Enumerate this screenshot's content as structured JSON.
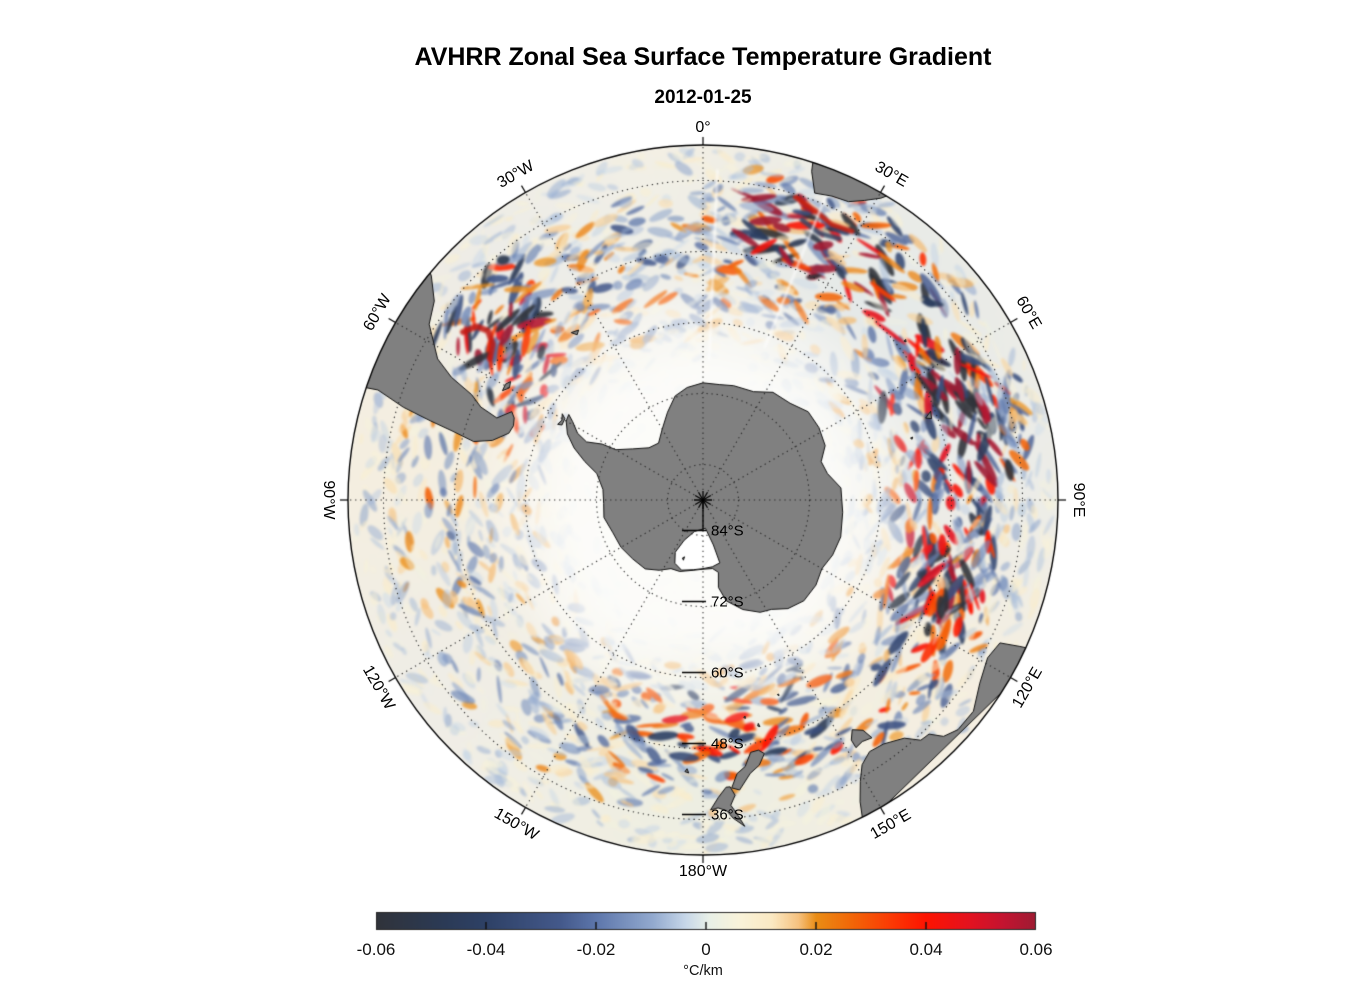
{
  "title": "AVHRR Zonal Sea Surface Temperature Gradient",
  "subtitle": "2012-01-25",
  "chart_data": {
    "type": "heatmap",
    "description_visible": "South polar view of zonal SST gradient field with graticule and colorbar",
    "value_range": [
      -0.06,
      0.06
    ],
    "projection": {
      "pole_lat": -90,
      "outer_lat": -30,
      "lat_gridlines": [
        -84,
        -72,
        -60,
        -48,
        -36
      ],
      "lon_gridline_step_deg": 30
    },
    "lon_labels": [
      {
        "text": "0°",
        "lon": 0,
        "rot": 0
      },
      {
        "text": "30°E",
        "lon": 30,
        "rot": 30
      },
      {
        "text": "60°E",
        "lon": 60,
        "rot": 60
      },
      {
        "text": "90°E",
        "lon": 90,
        "rot": 90
      },
      {
        "text": "120°E",
        "lon": 120,
        "rot": -60
      },
      {
        "text": "150°E",
        "lon": 150,
        "rot": -30
      },
      {
        "text": "180°W",
        "lon": 180,
        "rot": 0
      },
      {
        "text": "150°W",
        "lon": -150,
        "rot": 30
      },
      {
        "text": "120°W",
        "lon": -120,
        "rot": 60
      },
      {
        "text": "90°W",
        "lon": -90,
        "rot": 90
      },
      {
        "text": "60°W",
        "lon": -60,
        "rot": -60
      },
      {
        "text": "30°W",
        "lon": -30,
        "rot": -30
      }
    ],
    "lat_labels": [
      {
        "text": "84°S",
        "lat": -84
      },
      {
        "text": "72°S",
        "lat": -72
      },
      {
        "text": "60°S",
        "lat": -60
      },
      {
        "text": "48°S",
        "lat": -48
      },
      {
        "text": "36°S",
        "lat": -36
      }
    ],
    "colorbar": {
      "min": -0.06,
      "max": 0.06,
      "ticks": [
        "-0.06",
        "-0.04",
        "-0.02",
        "0",
        "0.02",
        "0.04",
        "0.06"
      ],
      "tick_values": [
        -0.06,
        -0.04,
        -0.02,
        0,
        0.02,
        0.04,
        0.06
      ],
      "inner_tick_values": [
        -0.04,
        -0.02,
        0,
        0.02,
        0.04
      ],
      "unit": "°C/km",
      "stops": [
        [
          0.0,
          "#30333a"
        ],
        [
          0.1,
          "#2b3a55"
        ],
        [
          0.167,
          "#2e4166"
        ],
        [
          0.28,
          "#44598b"
        ],
        [
          0.333,
          "#5d76ab"
        ],
        [
          0.42,
          "#93aacf"
        ],
        [
          0.47,
          "#c8d8e9"
        ],
        [
          0.505,
          "#e9f0e7"
        ],
        [
          0.55,
          "#f9f3da"
        ],
        [
          0.6,
          "#fbe9c3"
        ],
        [
          0.64,
          "#f6c280"
        ],
        [
          0.667,
          "#ea8d15"
        ],
        [
          0.72,
          "#f26708"
        ],
        [
          0.78,
          "#fb3a04"
        ],
        [
          0.833,
          "#fe1401"
        ],
        [
          0.9,
          "#e31220"
        ],
        [
          0.95,
          "#c41430"
        ],
        [
          1.0,
          "#9e1c33"
        ]
      ]
    },
    "land_color": "#808080",
    "ice_color": "#ffffff",
    "coast_color": "#141414",
    "land": [
      {
        "name": "antarctica",
        "kind": "land",
        "pts": [
          [
            0,
            -70.2
          ],
          [
            8,
            -70.3
          ],
          [
            15,
            -70
          ],
          [
            25,
            -69.8
          ],
          [
            33,
            -68.3
          ],
          [
            42,
            -68
          ],
          [
            50,
            -66.8
          ],
          [
            58,
            -66.9
          ],
          [
            66,
            -67.4
          ],
          [
            72,
            -69
          ],
          [
            78,
            -68.5
          ],
          [
            85,
            -66.6
          ],
          [
            95,
            -66.3
          ],
          [
            105,
            -65.9
          ],
          [
            113,
            -66.2
          ],
          [
            120,
            -66.8
          ],
          [
            127,
            -66.1
          ],
          [
            135,
            -65.9
          ],
          [
            142,
            -66.7
          ],
          [
            148,
            -68.2
          ],
          [
            153,
            -68.7
          ],
          [
            160,
            -70.3
          ],
          [
            167,
            -72.5
          ],
          [
            170,
            -75
          ],
          [
            168,
            -77.5
          ],
          [
            172,
            -78.3
          ],
          [
            180,
            -78.3
          ],
          [
            -172,
            -78
          ],
          [
            -162,
            -77.3
          ],
          [
            -155,
            -77.2
          ],
          [
            -148,
            -76
          ],
          [
            -140,
            -74.8
          ],
          [
            -130,
            -74.5
          ],
          [
            -120,
            -74
          ],
          [
            -110,
            -73.8
          ],
          [
            -100,
            -73
          ],
          [
            -92,
            -73.2
          ],
          [
            -84,
            -73
          ],
          [
            -76,
            -71.5
          ],
          [
            -72,
            -69
          ],
          [
            -68,
            -66.5
          ],
          [
            -64,
            -64.5
          ],
          [
            -60,
            -63.3
          ],
          [
            -57.5,
            -63.1
          ],
          [
            -59,
            -64.3
          ],
          [
            -62,
            -66
          ],
          [
            -63.5,
            -68
          ],
          [
            -61,
            -70.5
          ],
          [
            -60,
            -73
          ],
          [
            -54,
            -75.3
          ],
          [
            -46,
            -77.3
          ],
          [
            -38,
            -77.8
          ],
          [
            -30,
            -76.2
          ],
          [
            -22,
            -74
          ],
          [
            -15,
            -71.8
          ],
          [
            -8,
            -70.8
          ]
        ]
      },
      {
        "name": "ross-ice-shelf",
        "kind": "ice",
        "pts": [
          [
            165,
            -79
          ],
          [
            172,
            -78.6
          ],
          [
            180,
            -78.4
          ],
          [
            -172,
            -78.1
          ],
          [
            -163,
            -77.6
          ],
          [
            -156,
            -78.3
          ],
          [
            -152,
            -80
          ],
          [
            -155,
            -82.5
          ],
          [
            -165,
            -84.5
          ],
          [
            175,
            -85.2
          ],
          [
            167,
            -82.2
          ]
        ]
      },
      {
        "name": "south-america",
        "kind": "land",
        "pts": [
          [
            -71.8,
            -28
          ],
          [
            -71.3,
            -32
          ],
          [
            -72.8,
            -37
          ],
          [
            -73.8,
            -42
          ],
          [
            -74.6,
            -46
          ],
          [
            -75.7,
            -50
          ],
          [
            -74.2,
            -53
          ],
          [
            -71,
            -55.3
          ],
          [
            -68.6,
            -55.6
          ],
          [
            -66.5,
            -55.2
          ],
          [
            -65.2,
            -54.4
          ],
          [
            -68.3,
            -52.5
          ],
          [
            -67.3,
            -49.3
          ],
          [
            -65.5,
            -47
          ],
          [
            -64,
            -42.7
          ],
          [
            -62,
            -39.2
          ],
          [
            -57.3,
            -35
          ],
          [
            -53.5,
            -33.5
          ],
          [
            -50.5,
            -30.5
          ],
          [
            -48.5,
            -27
          ],
          [
            -72,
            -27
          ]
        ]
      },
      {
        "name": "southern-africa",
        "kind": "land",
        "pts": [
          [
            17.5,
            -27
          ],
          [
            18.3,
            -31.5
          ],
          [
            20,
            -34.8
          ],
          [
            23,
            -34.2
          ],
          [
            26,
            -33.9
          ],
          [
            28.3,
            -32.5
          ],
          [
            30.5,
            -30.8
          ],
          [
            32,
            -28.8
          ],
          [
            33,
            -27
          ]
        ]
      },
      {
        "name": "australia",
        "kind": "land",
        "pts": [
          [
            114,
            -27
          ],
          [
            114.8,
            -31
          ],
          [
            115.7,
            -34.3
          ],
          [
            119,
            -35
          ],
          [
            123.5,
            -33.9
          ],
          [
            128,
            -32
          ],
          [
            132,
            -32
          ],
          [
            134.5,
            -33
          ],
          [
            136,
            -35
          ],
          [
            137.8,
            -35.2
          ],
          [
            139.8,
            -37.3
          ],
          [
            143.5,
            -38.7
          ],
          [
            146.5,
            -39
          ],
          [
            149,
            -37.8
          ],
          [
            150.8,
            -35.5
          ],
          [
            152.5,
            -32.5
          ],
          [
            153.8,
            -28.5
          ]
        ]
      },
      {
        "name": "tasmania",
        "kind": "land",
        "pts": [
          [
            144.6,
            -40.7
          ],
          [
            146.6,
            -41.1
          ],
          [
            148.3,
            -40.8
          ],
          [
            148.3,
            -42.3
          ],
          [
            147,
            -43.7
          ],
          [
            145.2,
            -42.6
          ]
        ]
      },
      {
        "name": "nz-south-island",
        "kind": "land",
        "pts": [
          [
            166.4,
            -45.9
          ],
          [
            168,
            -44.2
          ],
          [
            170.2,
            -43.1
          ],
          [
            172.8,
            -40.6
          ],
          [
            174.3,
            -41.1
          ],
          [
            172.9,
            -43.4
          ],
          [
            171,
            -44.4
          ],
          [
            169.3,
            -46.6
          ],
          [
            167.5,
            -46.7
          ]
        ]
      },
      {
        "name": "nz-north-island",
        "kind": "land",
        "pts": [
          [
            172.7,
            -34.4
          ],
          [
            174.6,
            -36
          ],
          [
            175.6,
            -37.3
          ],
          [
            177.2,
            -37.9
          ],
          [
            178.6,
            -37.6
          ],
          [
            177.1,
            -39.6
          ],
          [
            175.4,
            -41.3
          ],
          [
            174.6,
            -41.3
          ],
          [
            173.8,
            -39.8
          ],
          [
            174.8,
            -38.2
          ],
          [
            173.9,
            -36.8
          ]
        ]
      },
      {
        "name": "falkland-islands",
        "kind": "land",
        "pts": [
          [
            -61.4,
            -51.4
          ],
          [
            -59.6,
            -51.3
          ],
          [
            -58.4,
            -51.8
          ],
          [
            -59.9,
            -52.2
          ]
        ]
      },
      {
        "name": "south-georgia",
        "kind": "land",
        "pts": [
          [
            -38.2,
            -54
          ],
          [
            -36.2,
            -54.4
          ],
          [
            -37.3,
            -54.9
          ]
        ]
      },
      {
        "name": "south-shetlands",
        "kind": "land",
        "pts": [
          [
            -62.5,
            -62.3
          ],
          [
            -60.5,
            -62.6
          ],
          [
            -58.5,
            -62.1
          ],
          [
            -59.5,
            -62.9
          ],
          [
            -62,
            -63
          ]
        ]
      },
      {
        "name": "kerguelen",
        "kind": "land",
        "pts": [
          [
            68.7,
            -48.7
          ],
          [
            70.4,
            -49
          ],
          [
            69.8,
            -49.9
          ]
        ]
      },
      {
        "name": "heard-island",
        "kind": "land",
        "pts": [
          [
            73.3,
            -53
          ],
          [
            73.8,
            -53.2
          ],
          [
            73.4,
            -53.4
          ]
        ]
      },
      {
        "name": "crozet",
        "kind": "land",
        "pts": [
          [
            51.6,
            -46.3
          ],
          [
            52.1,
            -46.5
          ],
          [
            51.7,
            -46.7
          ]
        ]
      },
      {
        "name": "macquarie",
        "kind": "land",
        "pts": [
          [
            158.8,
            -54.5
          ],
          [
            159.1,
            -54.8
          ],
          [
            158.7,
            -54.8
          ]
        ]
      },
      {
        "name": "auckland-islands",
        "kind": "land",
        "pts": [
          [
            165.9,
            -50.5
          ],
          [
            166.4,
            -50.7
          ],
          [
            166.1,
            -51.1
          ]
        ]
      },
      {
        "name": "campbell-island",
        "kind": "land",
        "pts": [
          [
            169,
            -52.4
          ],
          [
            169.4,
            -52.6
          ],
          [
            169,
            -52.8
          ]
        ]
      },
      {
        "name": "chatham-islands",
        "kind": "land",
        "pts": [
          [
            -177,
            -43.8
          ],
          [
            -176.2,
            -44
          ],
          [
            -176.6,
            -44.5
          ]
        ]
      },
      {
        "name": "shelf-island",
        "kind": "land",
        "pts": [
          [
            -162,
            -79.3
          ],
          [
            -160.5,
            -79.6
          ],
          [
            -162,
            -79.9
          ]
        ]
      }
    ],
    "hot_regions": [
      {
        "name": "agulhas-retroflection",
        "lon": [
          8,
          85
        ],
        "lat": [
          -48,
          -33
        ],
        "mult": 3.4
      },
      {
        "name": "brazil-malvinas",
        "lon": [
          -60,
          -38
        ],
        "lat": [
          -50,
          -36
        ],
        "mult": 3.0
      },
      {
        "name": "acc-indian",
        "lon": [
          60,
          120
        ],
        "lat": [
          -56,
          -40
        ],
        "mult": 1.9
      },
      {
        "name": "drake-scotia",
        "lon": [
          -68,
          -45
        ],
        "lat": [
          -60,
          -50
        ],
        "mult": 1.9
      },
      {
        "name": "campbell-plateau",
        "lon": [
          150,
          190
        ],
        "lat": [
          -58,
          -42
        ],
        "mult": 1.6
      },
      {
        "name": "south-of-australia",
        "lon": [
          100,
          148
        ],
        "lat": [
          -50,
          -36
        ],
        "mult": 1.5
      },
      {
        "name": "acc-band",
        "lon": [
          -180,
          180
        ],
        "lat": [
          -58,
          -42
        ],
        "mult": 1.35
      },
      {
        "name": "east-pacific-quiet",
        "lon": [
          -150,
          -90
        ],
        "lat": [
          -60,
          -40
        ],
        "mult": 0.75
      }
    ],
    "notable_features": [
      {
        "name": "malvinas-confluence-red-arc",
        "color": "#c21a14",
        "width": 6,
        "path": [
          [
            -55,
            -40.5
          ],
          [
            -52.5,
            -41.8
          ],
          [
            -51.8,
            -43.8
          ],
          [
            -53.5,
            -45.8
          ],
          [
            -56.5,
            -46.8
          ]
        ]
      },
      {
        "name": "agulhas-red-filament",
        "color": "#c8200f",
        "width": 5,
        "path": [
          [
            17,
            -36.5
          ],
          [
            21,
            -37.5
          ],
          [
            25,
            -38.6
          ],
          [
            29,
            -38.1
          ]
        ]
      },
      {
        "name": "agulhas-navy-filament",
        "color": "#394a68",
        "width": 5,
        "path": [
          [
            19.5,
            -39.8
          ],
          [
            23.5,
            -40.8
          ],
          [
            27.5,
            -40.2
          ]
        ]
      }
    ]
  }
}
